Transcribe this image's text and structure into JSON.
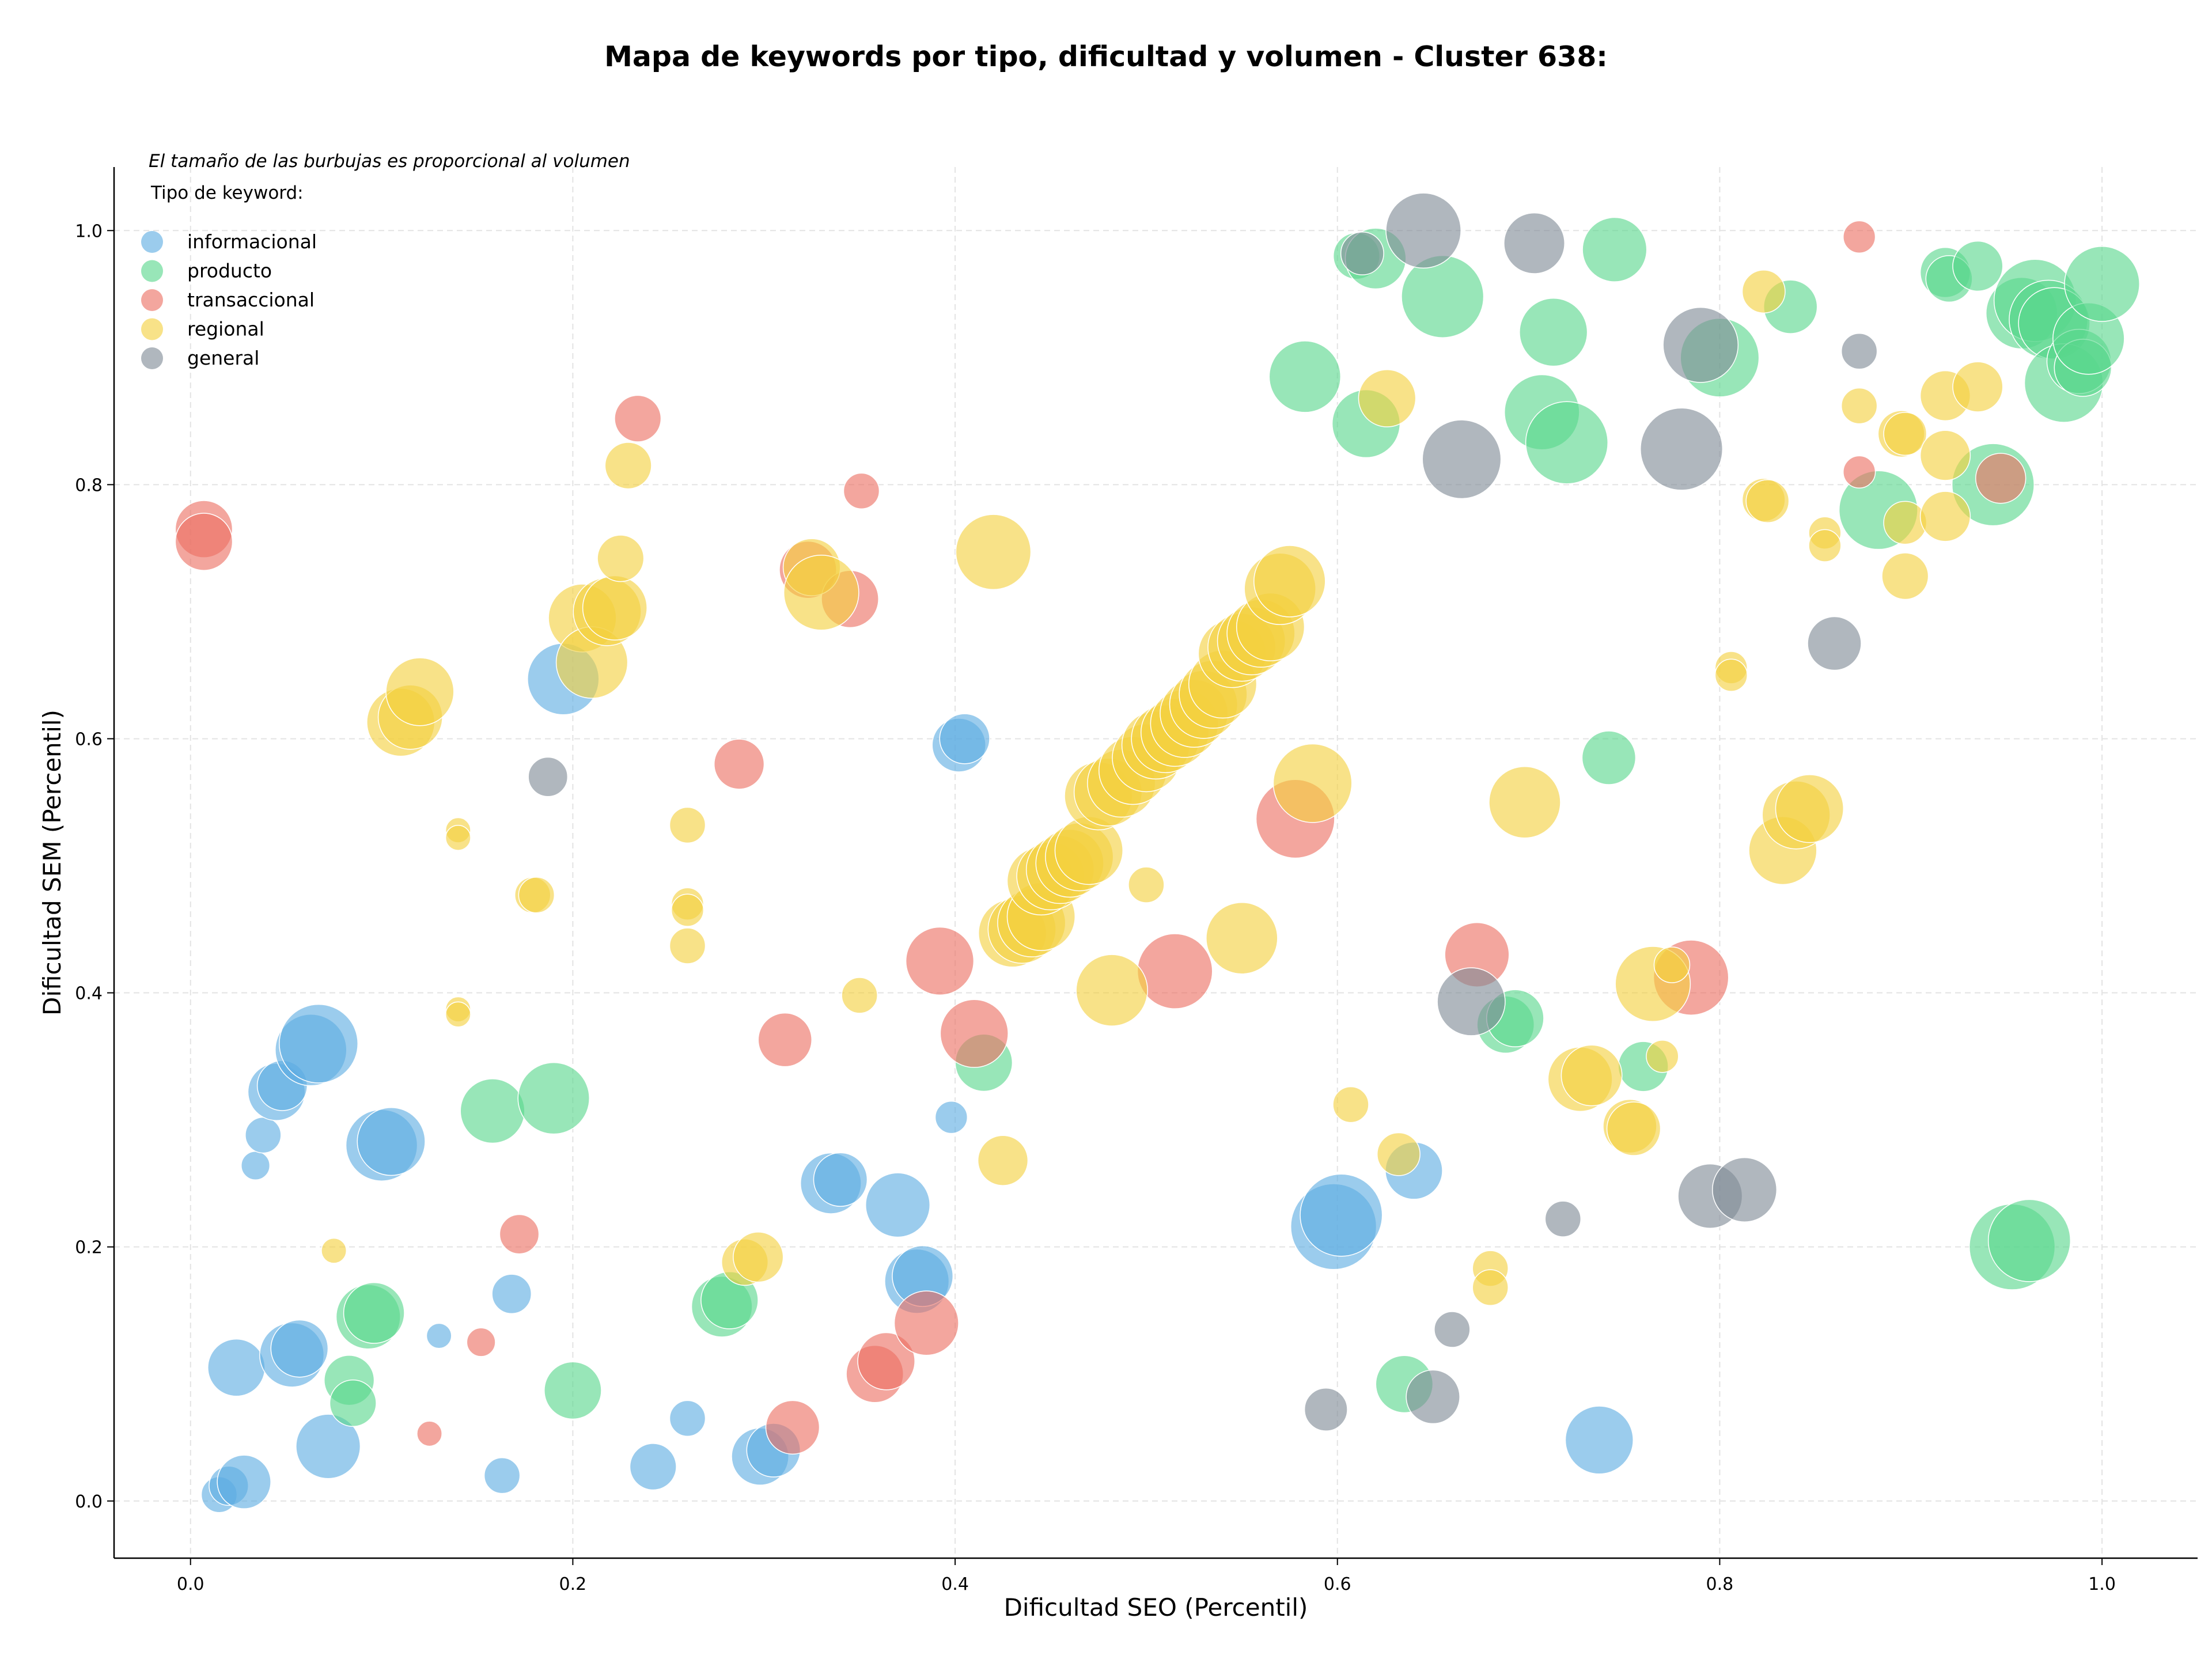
{
  "chart_data": {
    "type": "scatter",
    "title": "Mapa de keywords por tipo, dificultad y volumen - Cluster 638:",
    "xlabel": "Dificultad SEO (Percentil)",
    "ylabel": "Dificultad SEM (Percentil)",
    "xlim": [
      -0.04,
      1.05
    ],
    "ylim": [
      -0.045,
      1.05
    ],
    "xticks": [
      0.0,
      0.2,
      0.4,
      0.6,
      0.8,
      1.0
    ],
    "yticks": [
      0.0,
      0.2,
      0.4,
      0.6,
      0.8,
      1.0
    ],
    "xtick_labels": [
      "0.0",
      "0.2",
      "0.4",
      "0.6",
      "0.8",
      "1.0"
    ],
    "ytick_labels": [
      "0.0",
      "0.2",
      "0.4",
      "0.6",
      "0.8",
      "1.0"
    ],
    "grid": true,
    "annotation": "El tamaño de las burbujas es proporcional al volumen",
    "legend_title": "Tipo de keyword:",
    "legend_position": "top-left",
    "series": [
      {
        "name": "informacional",
        "color": "#5DADE2",
        "points": [
          [
            0.015,
            0.005,
            1.0
          ],
          [
            0.02,
            0.012,
            1.1
          ],
          [
            0.028,
            0.015,
            1.5
          ],
          [
            0.024,
            0.105,
            1.6
          ],
          [
            0.053,
            0.115,
            1.8
          ],
          [
            0.057,
            0.12,
            1.6
          ],
          [
            0.072,
            0.043,
            1.8
          ],
          [
            0.034,
            0.264,
            0.8
          ],
          [
            0.038,
            0.288,
            1.0
          ],
          [
            0.045,
            0.322,
            1.6
          ],
          [
            0.048,
            0.327,
            1.4
          ],
          [
            0.063,
            0.355,
            2.0
          ],
          [
            0.067,
            0.36,
            2.2
          ],
          [
            0.1,
            0.28,
            2.0
          ],
          [
            0.105,
            0.283,
            1.9
          ],
          [
            0.13,
            0.13,
            0.7
          ],
          [
            0.163,
            0.02,
            1.0
          ],
          [
            0.168,
            0.163,
            1.1
          ],
          [
            0.195,
            0.647,
            2.0
          ],
          [
            0.242,
            0.027,
            1.3
          ],
          [
            0.26,
            0.065,
            1.0
          ],
          [
            0.298,
            0.035,
            1.6
          ],
          [
            0.305,
            0.04,
            1.5
          ],
          [
            0.335,
            0.25,
            1.7
          ],
          [
            0.34,
            0.253,
            1.5
          ],
          [
            0.37,
            0.233,
            1.8
          ],
          [
            0.38,
            0.173,
            1.8
          ],
          [
            0.383,
            0.177,
            1.7
          ],
          [
            0.398,
            0.302,
            0.9
          ],
          [
            0.402,
            0.595,
            1.5
          ],
          [
            0.405,
            0.6,
            1.4
          ],
          [
            0.598,
            0.216,
            2.4
          ],
          [
            0.602,
            0.225,
            2.3
          ],
          [
            0.64,
            0.26,
            1.6
          ],
          [
            0.737,
            0.048,
            1.9
          ]
        ]
      },
      {
        "name": "producto",
        "color": "#58D68D",
        "points": [
          [
            0.083,
            0.095,
            1.4
          ],
          [
            0.085,
            0.077,
            1.3
          ],
          [
            0.093,
            0.145,
            1.8
          ],
          [
            0.096,
            0.148,
            1.7
          ],
          [
            0.158,
            0.307,
            1.8
          ],
          [
            0.19,
            0.317,
            2.0
          ],
          [
            0.2,
            0.087,
            1.6
          ],
          [
            0.278,
            0.153,
            1.7
          ],
          [
            0.282,
            0.158,
            1.6
          ],
          [
            0.415,
            0.345,
            1.6
          ],
          [
            0.583,
            0.885,
            2.0
          ],
          [
            0.61,
            0.98,
            1.3
          ],
          [
            0.62,
            0.978,
            1.7
          ],
          [
            0.615,
            0.848,
            1.9
          ],
          [
            0.635,
            0.092,
            1.6
          ],
          [
            0.655,
            0.948,
            2.3
          ],
          [
            0.688,
            0.375,
            1.6
          ],
          [
            0.693,
            0.38,
            1.6
          ],
          [
            0.707,
            0.857,
            2.1
          ],
          [
            0.713,
            0.92,
            1.9
          ],
          [
            0.72,
            0.833,
            2.3
          ],
          [
            0.742,
            0.585,
            1.5
          ],
          [
            0.745,
            0.985,
            1.8
          ],
          [
            0.76,
            0.342,
            1.4
          ],
          [
            0.8,
            0.9,
            2.2
          ],
          [
            0.837,
            0.94,
            1.5
          ],
          [
            0.883,
            0.78,
            2.2
          ],
          [
            0.918,
            0.967,
            1.4
          ],
          [
            0.92,
            0.962,
            1.3
          ],
          [
            0.935,
            0.972,
            1.4
          ],
          [
            0.943,
            0.8,
            2.3
          ],
          [
            0.953,
            0.2,
            2.4
          ],
          [
            0.958,
            0.935,
            2.0
          ],
          [
            0.965,
            0.945,
            2.3
          ],
          [
            0.962,
            0.205,
            2.3
          ],
          [
            0.972,
            0.93,
            2.2
          ],
          [
            0.975,
            0.927,
            2.0
          ],
          [
            0.98,
            0.88,
            2.2
          ],
          [
            0.988,
            0.897,
            1.8
          ],
          [
            0.99,
            0.892,
            1.6
          ],
          [
            0.993,
            0.915,
            2.0
          ],
          [
            1.0,
            0.958,
            2.1
          ]
        ]
      },
      {
        "name": "transaccional",
        "color": "#EC7063",
        "points": [
          [
            0.007,
            0.765,
            1.6
          ],
          [
            0.007,
            0.755,
            1.6
          ],
          [
            0.125,
            0.053,
            0.7
          ],
          [
            0.152,
            0.125,
            0.8
          ],
          [
            0.172,
            0.21,
            1.1
          ],
          [
            0.234,
            0.852,
            1.3
          ],
          [
            0.287,
            0.58,
            1.4
          ],
          [
            0.311,
            0.363,
            1.5
          ],
          [
            0.315,
            0.058,
            1.5
          ],
          [
            0.323,
            0.733,
            1.6
          ],
          [
            0.345,
            0.71,
            1.6
          ],
          [
            0.351,
            0.795,
            1.0
          ],
          [
            0.358,
            0.1,
            1.6
          ],
          [
            0.364,
            0.11,
            1.6
          ],
          [
            0.385,
            0.14,
            1.8
          ],
          [
            0.392,
            0.425,
            1.9
          ],
          [
            0.41,
            0.368,
            1.9
          ],
          [
            0.515,
            0.417,
            2.1
          ],
          [
            0.578,
            0.537,
            2.2
          ],
          [
            0.673,
            0.43,
            1.8
          ],
          [
            0.785,
            0.412,
            2.1
          ],
          [
            0.873,
            0.995,
            0.9
          ],
          [
            0.873,
            0.81,
            0.9
          ],
          [
            0.947,
            0.805,
            1.4
          ]
        ]
      },
      {
        "name": "regional",
        "color": "#F4D03F",
        "points": [
          [
            0.075,
            0.197,
            0.7
          ],
          [
            0.11,
            0.613,
            1.9
          ],
          [
            0.115,
            0.617,
            1.8
          ],
          [
            0.12,
            0.637,
            1.9
          ],
          [
            0.14,
            0.528,
            0.7
          ],
          [
            0.14,
            0.522,
            0.7
          ],
          [
            0.14,
            0.387,
            0.7
          ],
          [
            0.14,
            0.383,
            0.7
          ],
          [
            0.179,
            0.477,
            1.0
          ],
          [
            0.181,
            0.477,
            1.0
          ],
          [
            0.205,
            0.695,
            1.9
          ],
          [
            0.21,
            0.66,
            2.0
          ],
          [
            0.218,
            0.7,
            1.9
          ],
          [
            0.222,
            0.703,
            1.8
          ],
          [
            0.225,
            0.742,
            1.3
          ],
          [
            0.229,
            0.815,
            1.3
          ],
          [
            0.26,
            0.532,
            1.0
          ],
          [
            0.26,
            0.47,
            0.9
          ],
          [
            0.26,
            0.465,
            0.9
          ],
          [
            0.26,
            0.437,
            1.0
          ],
          [
            0.29,
            0.188,
            1.3
          ],
          [
            0.297,
            0.192,
            1.4
          ],
          [
            0.325,
            0.735,
            1.6
          ],
          [
            0.33,
            0.715,
            2.1
          ],
          [
            0.35,
            0.398,
            1.0
          ],
          [
            0.42,
            0.747,
            2.1
          ],
          [
            0.425,
            0.268,
            1.4
          ],
          [
            0.43,
            0.447,
            1.9
          ],
          [
            0.435,
            0.45,
            1.9
          ],
          [
            0.44,
            0.455,
            1.9
          ],
          [
            0.445,
            0.46,
            1.9
          ],
          [
            0.445,
            0.488,
            1.9
          ],
          [
            0.45,
            0.492,
            1.9
          ],
          [
            0.455,
            0.497,
            1.9
          ],
          [
            0.46,
            0.502,
            1.9
          ],
          [
            0.465,
            0.507,
            1.9
          ],
          [
            0.47,
            0.512,
            1.9
          ],
          [
            0.475,
            0.555,
            1.9
          ],
          [
            0.48,
            0.558,
            1.9
          ],
          [
            0.482,
            0.402,
            2.0
          ],
          [
            0.487,
            0.565,
            1.9
          ],
          [
            0.493,
            0.575,
            1.9
          ],
          [
            0.5,
            0.585,
            1.9
          ],
          [
            0.5,
            0.485,
            1.0
          ],
          [
            0.505,
            0.595,
            1.9
          ],
          [
            0.51,
            0.6,
            1.9
          ],
          [
            0.515,
            0.605,
            1.9
          ],
          [
            0.52,
            0.612,
            1.9
          ],
          [
            0.525,
            0.62,
            1.9
          ],
          [
            0.53,
            0.627,
            1.9
          ],
          [
            0.535,
            0.635,
            1.9
          ],
          [
            0.54,
            0.643,
            1.9
          ],
          [
            0.545,
            0.667,
            1.9
          ],
          [
            0.55,
            0.443,
            2.0
          ],
          [
            0.55,
            0.672,
            1.9
          ],
          [
            0.555,
            0.677,
            1.9
          ],
          [
            0.56,
            0.683,
            1.9
          ],
          [
            0.565,
            0.688,
            1.9
          ],
          [
            0.57,
            0.718,
            2.0
          ],
          [
            0.575,
            0.724,
            2.0
          ],
          [
            0.587,
            0.565,
            2.2
          ],
          [
            0.607,
            0.312,
            1.0
          ],
          [
            0.626,
            0.868,
            1.6
          ],
          [
            0.632,
            0.273,
            1.2
          ],
          [
            0.68,
            0.183,
            1.0
          ],
          [
            0.68,
            0.168,
            1.0
          ],
          [
            0.698,
            0.55,
            2.0
          ],
          [
            0.727,
            0.332,
            1.8
          ],
          [
            0.733,
            0.335,
            1.7
          ],
          [
            0.753,
            0.295,
            1.5
          ],
          [
            0.755,
            0.293,
            1.5
          ],
          [
            0.765,
            0.407,
            2.1
          ],
          [
            0.77,
            0.35,
            0.9
          ],
          [
            0.775,
            0.422,
            1.0
          ],
          [
            0.806,
            0.656,
            0.9
          ],
          [
            0.806,
            0.65,
            0.9
          ],
          [
            0.823,
            0.952,
            1.2
          ],
          [
            0.823,
            0.788,
            1.2
          ],
          [
            0.825,
            0.787,
            1.2
          ],
          [
            0.833,
            0.512,
            1.9
          ],
          [
            0.84,
            0.54,
            1.9
          ],
          [
            0.847,
            0.545,
            1.9
          ],
          [
            0.855,
            0.762,
            0.9
          ],
          [
            0.855,
            0.752,
            0.9
          ],
          [
            0.873,
            0.862,
            1.0
          ],
          [
            0.895,
            0.84,
            1.3
          ],
          [
            0.897,
            0.84,
            1.2
          ],
          [
            0.897,
            0.77,
            1.2
          ],
          [
            0.897,
            0.728,
            1.3
          ],
          [
            0.918,
            0.87,
            1.4
          ],
          [
            0.918,
            0.823,
            1.4
          ],
          [
            0.918,
            0.775,
            1.4
          ],
          [
            0.935,
            0.877,
            1.4
          ]
        ]
      },
      {
        "name": "general",
        "color": "#808B96",
        "points": [
          [
            0.187,
            0.57,
            1.1
          ],
          [
            0.594,
            0.072,
            1.2
          ],
          [
            0.613,
            0.982,
            1.2
          ],
          [
            0.645,
            1.0,
            2.1
          ],
          [
            0.65,
            0.082,
            1.5
          ],
          [
            0.66,
            0.135,
            1.0
          ],
          [
            0.665,
            0.82,
            2.2
          ],
          [
            0.67,
            0.393,
            1.9
          ],
          [
            0.703,
            0.99,
            1.7
          ],
          [
            0.718,
            0.222,
            1.0
          ],
          [
            0.78,
            0.828,
            2.3
          ],
          [
            0.79,
            0.91,
            2.1
          ],
          [
            0.795,
            0.24,
            1.8
          ],
          [
            0.813,
            0.245,
            1.8
          ],
          [
            0.86,
            0.675,
            1.5
          ],
          [
            0.873,
            0.905,
            1.0
          ]
        ]
      }
    ]
  }
}
